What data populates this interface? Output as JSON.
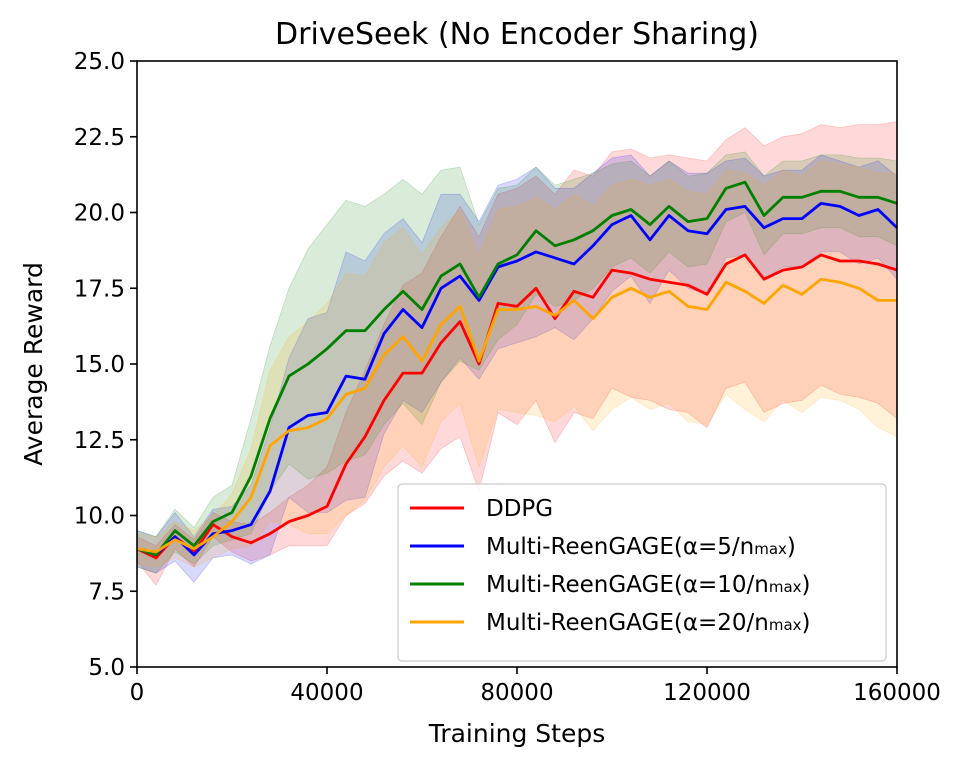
{
  "chart_data": {
    "type": "line",
    "title": "DriveSeek (No Encoder Sharing)",
    "xlabel": "Training Steps",
    "ylabel": "Average Reward",
    "xlim": [
      0,
      160000
    ],
    "ylim": [
      5.0,
      25.0
    ],
    "x_ticks": [
      "0",
      "40000",
      "80000",
      "120000",
      "160000"
    ],
    "y_ticks": [
      "5.0",
      "7.5",
      "10.0",
      "12.5",
      "15.0",
      "17.5",
      "20.0",
      "22.5",
      "25.0"
    ],
    "legend_position": "bottom-right",
    "grid": false,
    "x": [
      0,
      4000,
      8000,
      12000,
      16000,
      20000,
      24000,
      28000,
      32000,
      36000,
      40000,
      44000,
      48000,
      52000,
      56000,
      60000,
      64000,
      68000,
      72000,
      76000,
      80000,
      84000,
      88000,
      92000,
      96000,
      100000,
      104000,
      108000,
      112000,
      116000,
      120000,
      124000,
      128000,
      132000,
      136000,
      140000,
      144000,
      148000,
      152000,
      156000,
      160000
    ],
    "series": [
      {
        "name": "DDPG",
        "label_main": "DDPG",
        "label_sub": "",
        "label_end": "",
        "color": "#ff0000",
        "values": [
          8.9,
          8.6,
          9.3,
          8.8,
          9.7,
          9.3,
          9.1,
          9.4,
          9.8,
          10.0,
          10.3,
          11.7,
          12.6,
          13.8,
          14.7,
          14.7,
          15.7,
          16.4,
          15.0,
          17.0,
          16.9,
          17.5,
          16.5,
          17.4,
          17.2,
          18.1,
          18.0,
          17.8,
          17.7,
          17.6,
          17.3,
          18.3,
          18.6,
          17.8,
          18.1,
          18.2,
          18.6,
          18.4,
          18.4,
          18.3,
          18.1
        ],
        "upper": [
          9.3,
          9.0,
          9.7,
          9.2,
          10.1,
          9.8,
          9.7,
          10.1,
          10.6,
          11.0,
          11.6,
          13.4,
          14.8,
          16.3,
          17.6,
          18.0,
          19.2,
          20.2,
          19.2,
          20.6,
          20.8,
          21.2,
          20.6,
          21.4,
          21.2,
          22.0,
          22.1,
          21.8,
          21.9,
          21.8,
          21.7,
          22.4,
          22.8,
          22.2,
          22.5,
          22.6,
          22.9,
          22.8,
          22.9,
          22.9,
          23.0
        ],
        "lower": [
          8.5,
          7.7,
          8.9,
          8.3,
          9.3,
          8.8,
          8.5,
          8.7,
          9.0,
          9.0,
          9.0,
          10.0,
          10.4,
          11.3,
          11.8,
          11.4,
          12.2,
          12.6,
          10.8,
          13.4,
          13.0,
          13.8,
          12.4,
          13.4,
          13.2,
          14.2,
          13.9,
          13.8,
          13.5,
          13.4,
          12.9,
          14.2,
          14.4,
          13.4,
          13.7,
          13.8,
          14.3,
          14.0,
          13.9,
          13.7,
          13.2
        ]
      },
      {
        "name": "Multi-ReenGAGE(α=5/nmax)",
        "label_main": "Multi-ReenGAGE(α=5/n",
        "label_sub": "max",
        "label_end": ")",
        "color": "#0000ff",
        "values": [
          8.9,
          8.7,
          9.3,
          8.7,
          9.4,
          9.5,
          9.7,
          10.8,
          12.9,
          13.3,
          13.4,
          14.6,
          14.5,
          16.0,
          16.8,
          16.2,
          17.5,
          17.9,
          17.1,
          18.2,
          18.4,
          18.7,
          18.5,
          18.3,
          18.9,
          19.6,
          19.9,
          19.1,
          19.9,
          19.4,
          19.3,
          20.1,
          20.2,
          19.5,
          19.8,
          19.8,
          20.3,
          20.2,
          19.9,
          20.1,
          19.5
        ],
        "upper": [
          9.5,
          9.3,
          10.1,
          9.3,
          10.2,
          10.3,
          11.0,
          12.9,
          15.2,
          16.5,
          16.7,
          18.7,
          18.4,
          19.3,
          19.8,
          19.0,
          20.6,
          20.6,
          19.7,
          20.9,
          21.1,
          21.5,
          20.8,
          20.8,
          21.3,
          21.8,
          21.9,
          21.2,
          21.7,
          21.3,
          21.3,
          21.7,
          21.8,
          21.2,
          21.4,
          21.4,
          21.9,
          21.7,
          21.5,
          21.7,
          21.2
        ],
        "lower": [
          8.3,
          8.1,
          8.5,
          7.8,
          8.6,
          8.7,
          8.4,
          8.7,
          10.6,
          10.1,
          10.1,
          10.5,
          10.6,
          12.7,
          13.8,
          13.4,
          14.4,
          15.2,
          14.5,
          15.5,
          15.7,
          15.9,
          16.2,
          15.8,
          16.5,
          17.4,
          17.9,
          17.0,
          18.1,
          17.5,
          17.3,
          18.5,
          18.6,
          17.8,
          18.2,
          18.2,
          18.7,
          18.7,
          18.3,
          18.5,
          17.8
        ]
      },
      {
        "name": "Multi-ReenGAGE(α=10/nmax)",
        "label_main": "Multi-ReenGAGE(α=10/n",
        "label_sub": "max",
        "label_end": ")",
        "color": "#008000",
        "values": [
          8.9,
          8.7,
          9.5,
          9.0,
          9.8,
          10.1,
          11.3,
          13.2,
          14.6,
          15.0,
          15.5,
          16.1,
          16.1,
          16.8,
          17.4,
          16.8,
          17.9,
          18.3,
          17.2,
          18.3,
          18.6,
          19.4,
          18.9,
          19.1,
          19.4,
          19.9,
          20.1,
          19.6,
          20.2,
          19.7,
          19.8,
          20.8,
          21.0,
          19.9,
          20.5,
          20.5,
          20.7,
          20.7,
          20.5,
          20.5,
          20.3
        ],
        "upper": [
          9.5,
          9.3,
          10.2,
          9.6,
          10.6,
          11.0,
          13.2,
          15.6,
          17.5,
          18.8,
          19.6,
          20.4,
          20.2,
          20.6,
          21.1,
          20.6,
          21.4,
          21.5,
          19.6,
          20.8,
          20.9,
          21.5,
          20.9,
          21.1,
          21.3,
          21.6,
          21.7,
          21.2,
          21.7,
          21.2,
          21.3,
          21.9,
          22.0,
          21.2,
          21.7,
          21.7,
          21.9,
          21.9,
          21.8,
          21.8,
          21.7
        ],
        "lower": [
          8.3,
          8.1,
          8.8,
          8.4,
          9.0,
          9.2,
          9.4,
          10.8,
          11.7,
          11.2,
          11.4,
          11.8,
          12.0,
          13.0,
          13.7,
          13.0,
          14.4,
          15.1,
          14.8,
          15.8,
          16.3,
          17.3,
          16.9,
          17.1,
          17.5,
          18.2,
          18.5,
          18.0,
          18.7,
          18.2,
          18.3,
          19.7,
          20.0,
          18.6,
          19.3,
          19.3,
          19.5,
          19.5,
          19.2,
          19.2,
          18.9
        ]
      },
      {
        "name": "Multi-ReenGAGE(α=20/nmax)",
        "label_main": "Multi-ReenGAGE(α=20/n",
        "label_sub": "max",
        "label_end": ")",
        "color": "#ffa500",
        "values": [
          8.9,
          8.8,
          9.2,
          8.9,
          9.3,
          9.8,
          10.6,
          12.3,
          12.8,
          12.9,
          13.2,
          14.0,
          14.2,
          15.3,
          15.9,
          15.1,
          16.3,
          16.9,
          15.1,
          16.8,
          16.8,
          16.9,
          16.6,
          17.1,
          16.5,
          17.2,
          17.5,
          17.2,
          17.4,
          16.9,
          16.8,
          17.7,
          17.4,
          17.0,
          17.6,
          17.3,
          17.8,
          17.7,
          17.5,
          17.1,
          17.1
        ],
        "upper": [
          9.4,
          9.3,
          9.8,
          9.5,
          10.0,
          10.7,
          12.2,
          14.8,
          15.9,
          16.4,
          17.0,
          18.0,
          17.9,
          19.0,
          19.5,
          18.6,
          19.5,
          20.1,
          18.6,
          20.1,
          20.2,
          20.5,
          20.1,
          20.6,
          20.2,
          20.9,
          21.1,
          20.9,
          21.1,
          20.7,
          20.6,
          21.4,
          21.3,
          20.9,
          21.4,
          21.2,
          21.7,
          21.6,
          21.5,
          21.3,
          21.3
        ],
        "lower": [
          8.4,
          8.3,
          8.6,
          8.3,
          8.6,
          8.9,
          9.0,
          9.8,
          9.7,
          9.4,
          9.4,
          10.0,
          10.5,
          11.6,
          12.3,
          11.6,
          13.1,
          13.7,
          11.6,
          13.5,
          13.4,
          13.3,
          13.1,
          13.6,
          12.8,
          13.5,
          13.9,
          13.5,
          13.7,
          13.1,
          13.0,
          14.0,
          13.5,
          13.1,
          13.8,
          13.4,
          13.9,
          13.8,
          13.5,
          12.9,
          12.6
        ]
      }
    ]
  }
}
